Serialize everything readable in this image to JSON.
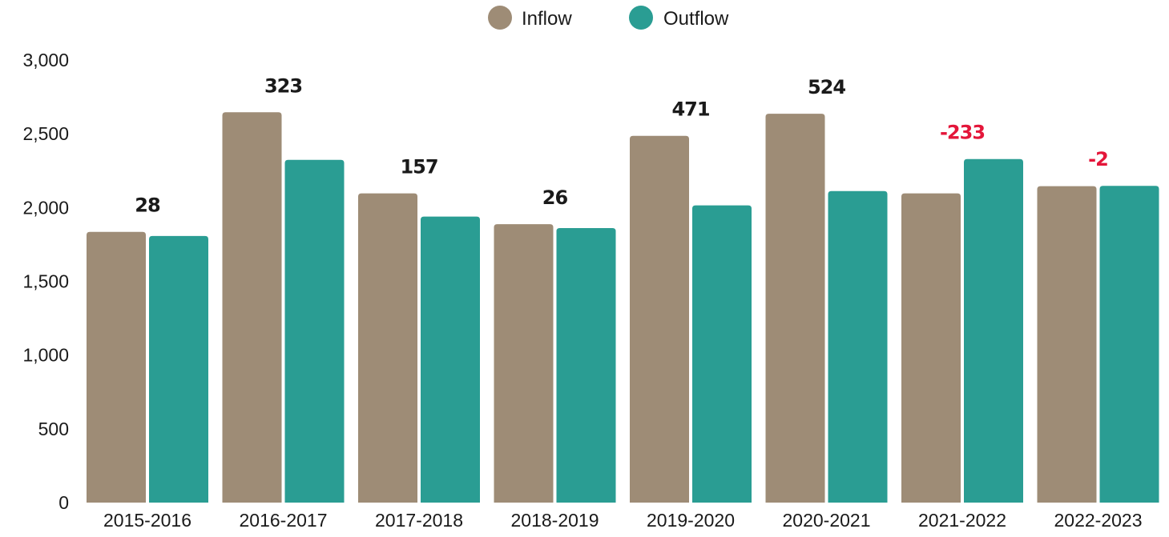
{
  "chart_data": {
    "type": "bar",
    "categories": [
      "2015-2016",
      "2016-2017",
      "2017-2018",
      "2018-2019",
      "2019-2020",
      "2020-2021",
      "2021-2022",
      "2022-2023"
    ],
    "series": [
      {
        "name": "Inflow",
        "color": "#9e8c76",
        "values": [
          1835,
          2646,
          2096,
          1887,
          2486,
          2636,
          2096,
          2145
        ]
      },
      {
        "name": "Outflow",
        "color": "#2a9d93",
        "values": [
          1807,
          2323,
          1939,
          1861,
          2015,
          2112,
          2329,
          2147
        ]
      }
    ],
    "annotations": [
      {
        "category": "2015-2016",
        "label": "28",
        "color": "#1a1a1a"
      },
      {
        "category": "2016-2017",
        "label": "323",
        "color": "#1a1a1a"
      },
      {
        "category": "2017-2018",
        "label": "157",
        "color": "#1a1a1a"
      },
      {
        "category": "2018-2019",
        "label": "26",
        "color": "#1a1a1a"
      },
      {
        "category": "2019-2020",
        "label": "471",
        "color": "#1a1a1a"
      },
      {
        "category": "2020-2021",
        "label": "524",
        "color": "#1a1a1a"
      },
      {
        "category": "2021-2022",
        "label": "-233",
        "color": "#e4163a"
      },
      {
        "category": "2022-2023",
        "label": "-2",
        "color": "#e4163a"
      }
    ],
    "ylim": [
      0,
      3000
    ],
    "yticks": [
      0,
      500,
      1000,
      1500,
      2000,
      2500,
      3000
    ],
    "ytick_labels": [
      "0",
      "500",
      "1,000",
      "1,500",
      "2,000",
      "2,500",
      "3,000"
    ],
    "grid": false,
    "legend_position": "top-center"
  }
}
